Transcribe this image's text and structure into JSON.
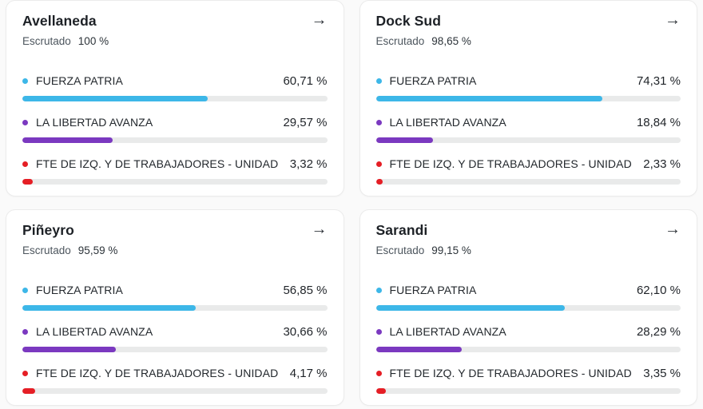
{
  "page": {
    "background": "#fafafa"
  },
  "party_colors": {
    "fuerza_patria": "#3DB7E8",
    "la_libertad_avanza": "#7B39C0",
    "fte_izq": "#E51E25"
  },
  "cards": [
    {
      "title": "Avellaneda",
      "escrutado_label": "Escrutado",
      "escrutado_value": "100 %",
      "arrow_icon": "→",
      "results": [
        {
          "party": "FUERZA PATRIA",
          "percent_label": "60,71 %",
          "percent": 60.71,
          "color": "#3DB7E8"
        },
        {
          "party": "LA LIBERTAD AVANZA",
          "percent_label": "29,57 %",
          "percent": 29.57,
          "color": "#7B39C0"
        },
        {
          "party": "FTE DE IZQ. Y DE TRABAJADORES - UNIDAD",
          "percent_label": "3,32 %",
          "percent": 3.32,
          "color": "#E51E25"
        }
      ]
    },
    {
      "title": "Dock Sud",
      "escrutado_label": "Escrutado",
      "escrutado_value": "98,65 %",
      "arrow_icon": "→",
      "results": [
        {
          "party": "FUERZA PATRIA",
          "percent_label": "74,31 %",
          "percent": 74.31,
          "color": "#3DB7E8"
        },
        {
          "party": "LA LIBERTAD AVANZA",
          "percent_label": "18,84 %",
          "percent": 18.84,
          "color": "#7B39C0"
        },
        {
          "party": "FTE DE IZQ. Y DE TRABAJADORES - UNIDAD",
          "percent_label": "2,33 %",
          "percent": 2.33,
          "color": "#E51E25"
        }
      ]
    },
    {
      "title": "Piñeyro",
      "escrutado_label": "Escrutado",
      "escrutado_value": "95,59 %",
      "arrow_icon": "→",
      "results": [
        {
          "party": "FUERZA PATRIA",
          "percent_label": "56,85 %",
          "percent": 56.85,
          "color": "#3DB7E8"
        },
        {
          "party": "LA LIBERTAD AVANZA",
          "percent_label": "30,66 %",
          "percent": 30.66,
          "color": "#7B39C0"
        },
        {
          "party": "FTE DE IZQ. Y DE TRABAJADORES - UNIDAD",
          "percent_label": "4,17 %",
          "percent": 4.17,
          "color": "#E51E25"
        }
      ]
    },
    {
      "title": "Sarandi",
      "escrutado_label": "Escrutado",
      "escrutado_value": "99,15 %",
      "arrow_icon": "→",
      "results": [
        {
          "party": "FUERZA PATRIA",
          "percent_label": "62,10 %",
          "percent": 62.1,
          "color": "#3DB7E8"
        },
        {
          "party": "LA LIBERTAD AVANZA",
          "percent_label": "28,29 %",
          "percent": 28.29,
          "color": "#7B39C0"
        },
        {
          "party": "FTE DE IZQ. Y DE TRABAJADORES - UNIDAD",
          "percent_label": "3,35 %",
          "percent": 3.35,
          "color": "#E51E25"
        }
      ]
    }
  ]
}
